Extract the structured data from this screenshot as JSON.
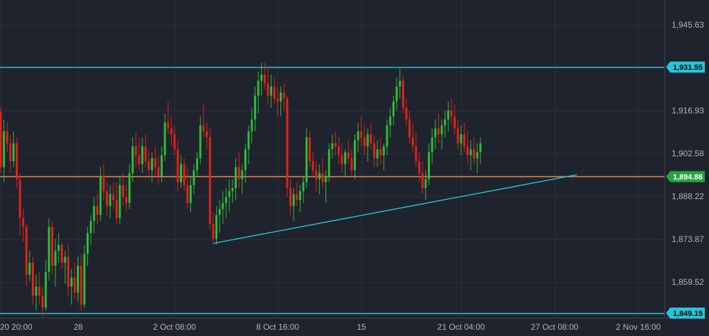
{
  "chart_data": {
    "type": "candlestick",
    "y_axis_ticks": [
      "1,945.63",
      "1,931.55",
      "1,916.93",
      "1,902.58",
      "1,888.22",
      "1,873.87",
      "1,859.52",
      "1,849.15"
    ],
    "y_axis_tick_values": [
      1945.63,
      1916.93,
      1902.58,
      1888.22,
      1873.87,
      1859.52
    ],
    "ylim": [
      1847.5,
      1954.0
    ],
    "x_axis_ticks": [
      "20 20:00",
      "28",
      "2 Oct 08:00",
      "8 Oct 16:00",
      "15",
      "21 Oct 04:00",
      "27 Oct 08:00",
      "2 Nov 16:00"
    ],
    "x_tick_bar_index": [
      0,
      24,
      54,
      86,
      112,
      143,
      172,
      198
    ],
    "horizontal_lines": [
      {
        "value": 1931.55,
        "label": "1,931.55",
        "color": "#26c6da",
        "badge_bg": "#26c6da",
        "badge_fg": "#000000"
      },
      {
        "value": 1894.86,
        "label": "1,894.86",
        "color": "#ef8a4e",
        "badge_bg": "#27a341",
        "badge_fg": "#ffffff"
      },
      {
        "value": 1849.15,
        "label": "1,849.15",
        "color": "#26c6da",
        "badge_bg": "#26c6da",
        "badge_fg": "#000000"
      }
    ],
    "trendline": {
      "from": {
        "bar": 66,
        "value": 1872.5
      },
      "to": {
        "bar": 179,
        "value": 1895.5
      },
      "color": "#26c6da"
    },
    "up_color": "#2fbd39",
    "down_color": "#e2231a",
    "candles": [
      [
        1916.5,
        1918,
        1896,
        1898
      ],
      [
        1898,
        1914,
        1893,
        1910
      ],
      [
        1910,
        1913,
        1903,
        1906
      ],
      [
        1906,
        1909,
        1896,
        1900
      ],
      [
        1900,
        1910,
        1898,
        1906
      ],
      [
        1906,
        1908,
        1891,
        1894
      ],
      [
        1894,
        1896,
        1875,
        1881
      ],
      [
        1881,
        1884,
        1873,
        1878
      ],
      [
        1878,
        1879,
        1858,
        1862
      ],
      [
        1862,
        1870,
        1860,
        1866
      ],
      [
        1866,
        1868,
        1852,
        1855
      ],
      [
        1855,
        1862,
        1850,
        1858
      ],
      [
        1858,
        1863,
        1852,
        1855
      ],
      [
        1855,
        1858,
        1848,
        1851
      ],
      [
        1851,
        1867,
        1850,
        1863
      ],
      [
        1863,
        1881,
        1860,
        1878
      ],
      [
        1878,
        1880,
        1862,
        1865
      ],
      [
        1865,
        1874,
        1858,
        1870
      ],
      [
        1870,
        1876,
        1866,
        1872
      ],
      [
        1872,
        1873,
        1864,
        1866
      ],
      [
        1866,
        1870,
        1859,
        1868
      ],
      [
        1868,
        1872,
        1855,
        1858
      ],
      [
        1858,
        1864,
        1852,
        1861
      ],
      [
        1861,
        1866,
        1854,
        1856
      ],
      [
        1856,
        1868,
        1853,
        1865
      ],
      [
        1865,
        1869,
        1850,
        1852
      ],
      [
        1852,
        1872,
        1851,
        1869
      ],
      [
        1869,
        1878,
        1865,
        1876
      ],
      [
        1876,
        1882,
        1872,
        1880
      ],
      [
        1880,
        1888,
        1876,
        1885
      ],
      [
        1885,
        1889,
        1879,
        1882
      ],
      [
        1882,
        1898,
        1880,
        1895
      ],
      [
        1895,
        1899,
        1887,
        1890
      ],
      [
        1890,
        1893,
        1882,
        1885
      ],
      [
        1885,
        1892,
        1881,
        1889
      ],
      [
        1889,
        1893,
        1884,
        1887
      ],
      [
        1887,
        1893,
        1879,
        1881
      ],
      [
        1881,
        1895,
        1879,
        1892
      ],
      [
        1892,
        1896,
        1885,
        1888
      ],
      [
        1888,
        1892,
        1883,
        1886
      ],
      [
        1886,
        1899,
        1884,
        1896
      ],
      [
        1896,
        1908,
        1893,
        1905
      ],
      [
        1905,
        1910,
        1898,
        1902
      ],
      [
        1902,
        1908,
        1897,
        1899
      ],
      [
        1899,
        1908,
        1896,
        1905
      ],
      [
        1905,
        1909,
        1898,
        1900
      ],
      [
        1900,
        1904,
        1894,
        1897
      ],
      [
        1897,
        1903,
        1893,
        1901
      ],
      [
        1901,
        1905,
        1895,
        1898
      ],
      [
        1898,
        1902,
        1892,
        1895
      ],
      [
        1895,
        1905,
        1893,
        1902
      ],
      [
        1902,
        1916,
        1900,
        1913
      ],
      [
        1913,
        1920,
        1909,
        1911
      ],
      [
        1911,
        1915,
        1905,
        1909
      ],
      [
        1909,
        1912,
        1902,
        1904
      ],
      [
        1904,
        1907,
        1890,
        1893
      ],
      [
        1893,
        1902,
        1891,
        1899
      ],
      [
        1899,
        1901,
        1890,
        1892
      ],
      [
        1892,
        1898,
        1884,
        1886
      ],
      [
        1886,
        1895,
        1883,
        1892
      ],
      [
        1892,
        1899,
        1889,
        1897
      ],
      [
        1897,
        1903,
        1895,
        1901
      ],
      [
        1901,
        1915,
        1899,
        1912
      ],
      [
        1912,
        1919,
        1908,
        1910
      ],
      [
        1910,
        1913,
        1904,
        1908
      ],
      [
        1908,
        1911,
        1877,
        1879
      ],
      [
        1879,
        1883,
        1873,
        1874
      ],
      [
        1874,
        1885,
        1872,
        1882
      ],
      [
        1882,
        1887,
        1876,
        1884
      ],
      [
        1884,
        1890,
        1879,
        1886
      ],
      [
        1886,
        1891,
        1881,
        1888
      ],
      [
        1888,
        1894,
        1883,
        1890
      ],
      [
        1890,
        1894,
        1886,
        1891
      ],
      [
        1891,
        1901,
        1887,
        1898
      ],
      [
        1898,
        1903,
        1891,
        1894
      ],
      [
        1894,
        1899,
        1889,
        1897
      ],
      [
        1897,
        1906,
        1893,
        1904
      ],
      [
        1904,
        1912,
        1899,
        1910
      ],
      [
        1910,
        1918,
        1906,
        1914
      ],
      [
        1914,
        1925,
        1910,
        1922
      ],
      [
        1922,
        1930,
        1916,
        1927
      ],
      [
        1927,
        1933,
        1922,
        1929
      ],
      [
        1929,
        1933,
        1924,
        1926
      ],
      [
        1926,
        1932,
        1919,
        1922
      ],
      [
        1922,
        1929,
        1918,
        1925
      ],
      [
        1925,
        1928,
        1919,
        1921
      ],
      [
        1921,
        1925,
        1915,
        1920
      ],
      [
        1920,
        1925,
        1915,
        1923
      ],
      [
        1923,
        1926,
        1917,
        1921
      ],
      [
        1921,
        1922,
        1888,
        1891
      ],
      [
        1891,
        1894,
        1882,
        1885
      ],
      [
        1885,
        1891,
        1880,
        1889
      ],
      [
        1889,
        1893,
        1885,
        1887
      ],
      [
        1887,
        1892,
        1883,
        1890
      ],
      [
        1890,
        1895,
        1886,
        1893
      ],
      [
        1893,
        1911,
        1891,
        1908
      ],
      [
        1908,
        1910,
        1898,
        1900
      ],
      [
        1900,
        1903,
        1895,
        1897
      ],
      [
        1897,
        1900,
        1890,
        1894
      ],
      [
        1894,
        1899,
        1889,
        1896
      ],
      [
        1896,
        1901,
        1891,
        1893
      ],
      [
        1893,
        1897,
        1886,
        1895
      ],
      [
        1895,
        1906,
        1893,
        1904
      ],
      [
        1904,
        1909,
        1901,
        1906
      ],
      [
        1906,
        1910,
        1902,
        1905
      ],
      [
        1905,
        1908,
        1899,
        1902
      ],
      [
        1902,
        1906,
        1896,
        1899
      ],
      [
        1899,
        1904,
        1895,
        1903
      ],
      [
        1903,
        1907,
        1899,
        1901
      ],
      [
        1901,
        1904,
        1895,
        1897
      ],
      [
        1897,
        1909,
        1894,
        1907
      ],
      [
        1907,
        1913,
        1903,
        1910
      ],
      [
        1910,
        1915,
        1905,
        1908
      ],
      [
        1908,
        1912,
        1902,
        1905
      ],
      [
        1905,
        1911,
        1900,
        1909
      ],
      [
        1909,
        1913,
        1904,
        1906
      ],
      [
        1906,
        1909,
        1898,
        1901
      ],
      [
        1901,
        1907,
        1898,
        1904
      ],
      [
        1904,
        1908,
        1899,
        1902
      ],
      [
        1902,
        1906,
        1897,
        1905
      ],
      [
        1905,
        1914,
        1902,
        1912
      ],
      [
        1912,
        1918,
        1908,
        1915
      ],
      [
        1915,
        1922,
        1912,
        1920
      ],
      [
        1920,
        1928,
        1917,
        1925
      ],
      [
        1925,
        1931,
        1921,
        1927
      ],
      [
        1927,
        1929,
        1916,
        1918
      ],
      [
        1918,
        1921,
        1912,
        1914
      ],
      [
        1914,
        1917,
        1906,
        1908
      ],
      [
        1908,
        1913,
        1903,
        1905
      ],
      [
        1905,
        1910,
        1898,
        1900
      ],
      [
        1900,
        1903,
        1893,
        1896
      ],
      [
        1896,
        1900,
        1889,
        1891
      ],
      [
        1891,
        1897,
        1887,
        1894
      ],
      [
        1894,
        1906,
        1892,
        1903
      ],
      [
        1903,
        1911,
        1899,
        1908
      ],
      [
        1908,
        1914,
        1904,
        1911
      ],
      [
        1911,
        1916,
        1906,
        1909
      ],
      [
        1909,
        1914,
        1904,
        1912
      ],
      [
        1912,
        1917,
        1908,
        1914
      ],
      [
        1914,
        1920,
        1910,
        1917
      ],
      [
        1917,
        1921,
        1912,
        1915
      ],
      [
        1915,
        1919,
        1909,
        1911
      ],
      [
        1911,
        1914,
        1904,
        1906
      ],
      [
        1906,
        1912,
        1902,
        1909
      ],
      [
        1909,
        1913,
        1903,
        1905
      ],
      [
        1905,
        1910,
        1899,
        1902
      ],
      [
        1902,
        1907,
        1897,
        1904
      ],
      [
        1904,
        1908,
        1899,
        1901
      ],
      [
        1901,
        1906,
        1896,
        1903
      ],
      [
        1903,
        1908,
        1899,
        1906
      ]
    ]
  }
}
